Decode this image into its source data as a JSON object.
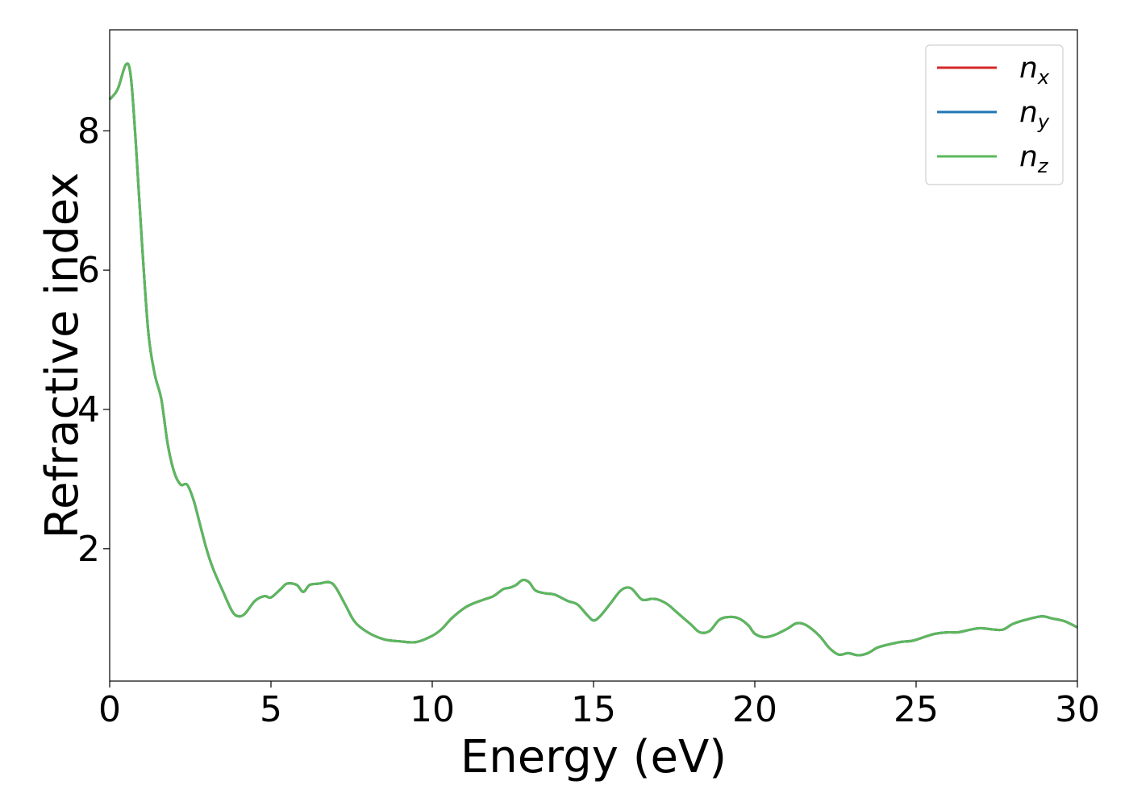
{
  "chart_data": {
    "type": "line",
    "title": "",
    "xlabel": "Energy (eV)",
    "ylabel": "Refractive index",
    "xlim": [
      0,
      30
    ],
    "ylim": [
      0.1,
      9.45
    ],
    "xticks": [
      0,
      5,
      10,
      15,
      20,
      25,
      30
    ],
    "yticks": [
      2,
      4,
      6,
      8
    ],
    "grid": false,
    "legend_position": "top-right",
    "series": [
      {
        "name": "n_x",
        "label_main": "n",
        "label_sub": "x",
        "color": "#d62728",
        "x": [
          0,
          0.25,
          0.5,
          0.65,
          0.8,
          1.0,
          1.2,
          1.4,
          1.6,
          1.8,
          2.0,
          2.2,
          2.4,
          2.6,
          2.8,
          3.0,
          3.2,
          3.5,
          3.8,
          4.0,
          4.2,
          4.5,
          4.8,
          5.0,
          5.3,
          5.5,
          5.8,
          6.0,
          6.2,
          6.5,
          6.8,
          7.0,
          7.3,
          7.6,
          8.0,
          8.5,
          9.0,
          9.5,
          10.0,
          10.3,
          10.6,
          11.0,
          11.3,
          11.6,
          11.9,
          12.2,
          12.4,
          12.6,
          12.8,
          13.0,
          13.2,
          13.5,
          13.8,
          14.2,
          14.5,
          14.8,
          15.0,
          15.2,
          15.5,
          15.8,
          16.0,
          16.2,
          16.5,
          16.8,
          17.0,
          17.3,
          17.6,
          18.0,
          18.3,
          18.6,
          18.9,
          19.2,
          19.5,
          19.8,
          20.0,
          20.3,
          20.6,
          21.0,
          21.3,
          21.6,
          22.0,
          22.3,
          22.6,
          22.9,
          23.2,
          23.5,
          23.8,
          24.1,
          24.5,
          24.9,
          25.3,
          25.6,
          26.0,
          26.3,
          26.7,
          27.0,
          27.4,
          27.7,
          28.0,
          28.4,
          28.9,
          29.2,
          29.6,
          30.0
        ],
        "values": [
          8.45,
          8.6,
          8.95,
          8.8,
          7.9,
          6.4,
          5.1,
          4.5,
          4.15,
          3.5,
          3.1,
          2.92,
          2.92,
          2.7,
          2.35,
          2.0,
          1.72,
          1.4,
          1.1,
          1.03,
          1.07,
          1.25,
          1.32,
          1.3,
          1.42,
          1.5,
          1.48,
          1.38,
          1.48,
          1.5,
          1.52,
          1.45,
          1.2,
          0.95,
          0.8,
          0.7,
          0.67,
          0.66,
          0.75,
          0.85,
          1.0,
          1.15,
          1.22,
          1.27,
          1.32,
          1.42,
          1.44,
          1.48,
          1.55,
          1.52,
          1.4,
          1.36,
          1.34,
          1.25,
          1.2,
          1.05,
          0.97,
          1.03,
          1.2,
          1.38,
          1.44,
          1.42,
          1.27,
          1.28,
          1.27,
          1.2,
          1.08,
          0.92,
          0.8,
          0.82,
          0.98,
          1.02,
          1.0,
          0.9,
          0.78,
          0.73,
          0.76,
          0.85,
          0.93,
          0.9,
          0.75,
          0.58,
          0.48,
          0.5,
          0.47,
          0.5,
          0.58,
          0.62,
          0.66,
          0.68,
          0.74,
          0.78,
          0.8,
          0.8,
          0.84,
          0.86,
          0.84,
          0.84,
          0.92,
          0.98,
          1.03,
          1.0,
          0.96,
          0.87
        ]
      },
      {
        "name": "n_y",
        "label_main": "n",
        "label_sub": "y",
        "color": "#1f77b4",
        "x": [
          0,
          0.25,
          0.5,
          0.65,
          0.8,
          1.0,
          1.2,
          1.4,
          1.6,
          1.8,
          2.0,
          2.2,
          2.4,
          2.6,
          2.8,
          3.0,
          3.2,
          3.5,
          3.8,
          4.0,
          4.2,
          4.5,
          4.8,
          5.0,
          5.3,
          5.5,
          5.8,
          6.0,
          6.2,
          6.5,
          6.8,
          7.0,
          7.3,
          7.6,
          8.0,
          8.5,
          9.0,
          9.5,
          10.0,
          10.3,
          10.6,
          11.0,
          11.3,
          11.6,
          11.9,
          12.2,
          12.4,
          12.6,
          12.8,
          13.0,
          13.2,
          13.5,
          13.8,
          14.2,
          14.5,
          14.8,
          15.0,
          15.2,
          15.5,
          15.8,
          16.0,
          16.2,
          16.5,
          16.8,
          17.0,
          17.3,
          17.6,
          18.0,
          18.3,
          18.6,
          18.9,
          19.2,
          19.5,
          19.8,
          20.0,
          20.3,
          20.6,
          21.0,
          21.3,
          21.6,
          22.0,
          22.3,
          22.6,
          22.9,
          23.2,
          23.5,
          23.8,
          24.1,
          24.5,
          24.9,
          25.3,
          25.6,
          26.0,
          26.3,
          26.7,
          27.0,
          27.4,
          27.7,
          28.0,
          28.4,
          28.9,
          29.2,
          29.6,
          30.0
        ],
        "values": [
          8.45,
          8.6,
          8.95,
          8.8,
          7.9,
          6.4,
          5.1,
          4.5,
          4.15,
          3.5,
          3.1,
          2.92,
          2.92,
          2.7,
          2.35,
          2.0,
          1.72,
          1.4,
          1.1,
          1.03,
          1.07,
          1.25,
          1.32,
          1.3,
          1.42,
          1.5,
          1.48,
          1.38,
          1.48,
          1.5,
          1.52,
          1.45,
          1.2,
          0.95,
          0.8,
          0.7,
          0.67,
          0.66,
          0.75,
          0.85,
          1.0,
          1.15,
          1.22,
          1.27,
          1.32,
          1.42,
          1.44,
          1.48,
          1.55,
          1.52,
          1.4,
          1.36,
          1.34,
          1.25,
          1.2,
          1.05,
          0.97,
          1.03,
          1.2,
          1.38,
          1.44,
          1.42,
          1.27,
          1.28,
          1.27,
          1.2,
          1.08,
          0.92,
          0.8,
          0.82,
          0.98,
          1.02,
          1.0,
          0.9,
          0.78,
          0.73,
          0.76,
          0.85,
          0.93,
          0.9,
          0.75,
          0.58,
          0.48,
          0.5,
          0.47,
          0.5,
          0.58,
          0.62,
          0.66,
          0.68,
          0.74,
          0.78,
          0.8,
          0.8,
          0.84,
          0.86,
          0.84,
          0.84,
          0.92,
          0.98,
          1.03,
          1.0,
          0.96,
          0.87
        ]
      },
      {
        "name": "n_z",
        "label_main": "n",
        "label_sub": "z",
        "color": "#5cb85c",
        "x": [
          0,
          0.25,
          0.5,
          0.65,
          0.8,
          1.0,
          1.2,
          1.4,
          1.6,
          1.8,
          2.0,
          2.2,
          2.4,
          2.6,
          2.8,
          3.0,
          3.2,
          3.5,
          3.8,
          4.0,
          4.2,
          4.5,
          4.8,
          5.0,
          5.3,
          5.5,
          5.8,
          6.0,
          6.2,
          6.5,
          6.8,
          7.0,
          7.3,
          7.6,
          8.0,
          8.5,
          9.0,
          9.5,
          10.0,
          10.3,
          10.6,
          11.0,
          11.3,
          11.6,
          11.9,
          12.2,
          12.4,
          12.6,
          12.8,
          13.0,
          13.2,
          13.5,
          13.8,
          14.2,
          14.5,
          14.8,
          15.0,
          15.2,
          15.5,
          15.8,
          16.0,
          16.2,
          16.5,
          16.8,
          17.0,
          17.3,
          17.6,
          18.0,
          18.3,
          18.6,
          18.9,
          19.2,
          19.5,
          19.8,
          20.0,
          20.3,
          20.6,
          21.0,
          21.3,
          21.6,
          22.0,
          22.3,
          22.6,
          22.9,
          23.2,
          23.5,
          23.8,
          24.1,
          24.5,
          24.9,
          25.3,
          25.6,
          26.0,
          26.3,
          26.7,
          27.0,
          27.4,
          27.7,
          28.0,
          28.4,
          28.9,
          29.2,
          29.6,
          30.0
        ],
        "values": [
          8.45,
          8.6,
          8.95,
          8.8,
          7.9,
          6.4,
          5.1,
          4.5,
          4.15,
          3.5,
          3.1,
          2.92,
          2.92,
          2.7,
          2.35,
          2.0,
          1.72,
          1.4,
          1.1,
          1.03,
          1.07,
          1.25,
          1.32,
          1.3,
          1.42,
          1.5,
          1.48,
          1.38,
          1.48,
          1.5,
          1.52,
          1.45,
          1.2,
          0.95,
          0.8,
          0.7,
          0.67,
          0.66,
          0.75,
          0.85,
          1.0,
          1.15,
          1.22,
          1.27,
          1.32,
          1.42,
          1.44,
          1.48,
          1.55,
          1.52,
          1.4,
          1.36,
          1.34,
          1.25,
          1.2,
          1.05,
          0.97,
          1.03,
          1.2,
          1.38,
          1.44,
          1.42,
          1.27,
          1.28,
          1.27,
          1.2,
          1.08,
          0.92,
          0.8,
          0.82,
          0.98,
          1.02,
          1.0,
          0.9,
          0.78,
          0.73,
          0.76,
          0.85,
          0.93,
          0.9,
          0.75,
          0.58,
          0.48,
          0.5,
          0.47,
          0.5,
          0.58,
          0.62,
          0.66,
          0.68,
          0.74,
          0.78,
          0.8,
          0.8,
          0.84,
          0.86,
          0.84,
          0.84,
          0.92,
          0.98,
          1.03,
          1.0,
          0.96,
          0.87
        ]
      }
    ]
  }
}
